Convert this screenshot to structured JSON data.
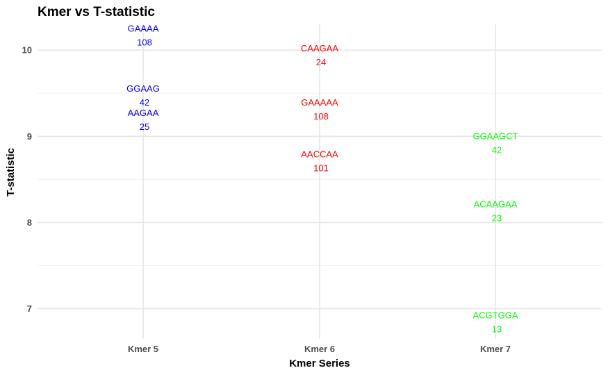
{
  "chart_data": {
    "type": "scatter",
    "title": "Kmer vs T-statistic",
    "xlabel": "Kmer Series",
    "ylabel": "T-statistic",
    "categories": [
      "Kmer 5",
      "Kmer 6",
      "Kmer 7"
    ],
    "ylim": [
      6.65,
      10.3
    ],
    "yticks": [
      7,
      8,
      9,
      10
    ],
    "grid": true,
    "legend": "none",
    "series": [
      {
        "category": "Kmer 5",
        "color": "#0000ff",
        "points": [
          {
            "kmer": "GAAAA",
            "count": "108",
            "y": 10.08
          },
          {
            "kmer": "GGAAG",
            "count": "42",
            "y": 9.38
          },
          {
            "kmer": "AAGAA",
            "count": "25",
            "y": 9.1
          }
        ]
      },
      {
        "category": "Kmer 6",
        "color": "#ff0000",
        "points": [
          {
            "kmer": "CAAGAA",
            "count": "24",
            "y": 9.85
          },
          {
            "kmer": "GAAAAA",
            "count": "108",
            "y": 9.22
          },
          {
            "kmer": "AACCAA",
            "count": "101",
            "y": 8.62
          }
        ]
      },
      {
        "category": "Kmer 7",
        "color": "#00ff00",
        "points": [
          {
            "kmer": "GGAAGCT",
            "count": "42",
            "y": 8.83
          },
          {
            "kmer": "ACAAGAA",
            "count": "23",
            "y": 8.04
          },
          {
            "kmer": "ACGTGGA",
            "count": "13",
            "y": 6.75
          }
        ]
      }
    ]
  }
}
